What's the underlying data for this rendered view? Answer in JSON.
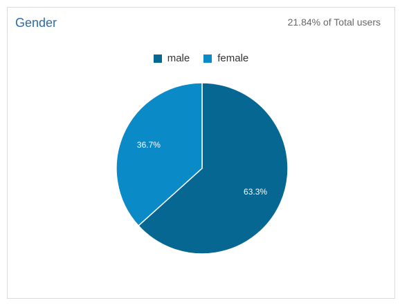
{
  "card": {
    "title": "Gender",
    "meta": "21.84% of Total users"
  },
  "colors": {
    "male": "#066793",
    "female": "#0b8ac8",
    "slice_border": "#ffffff",
    "label": "#ffffff"
  },
  "chart_data": {
    "type": "pie",
    "title": "Gender",
    "legend_position": "top-center",
    "categories": [
      "male",
      "female"
    ],
    "values": [
      63.3,
      36.7
    ],
    "labels": [
      "63.3%",
      "36.7%"
    ]
  }
}
